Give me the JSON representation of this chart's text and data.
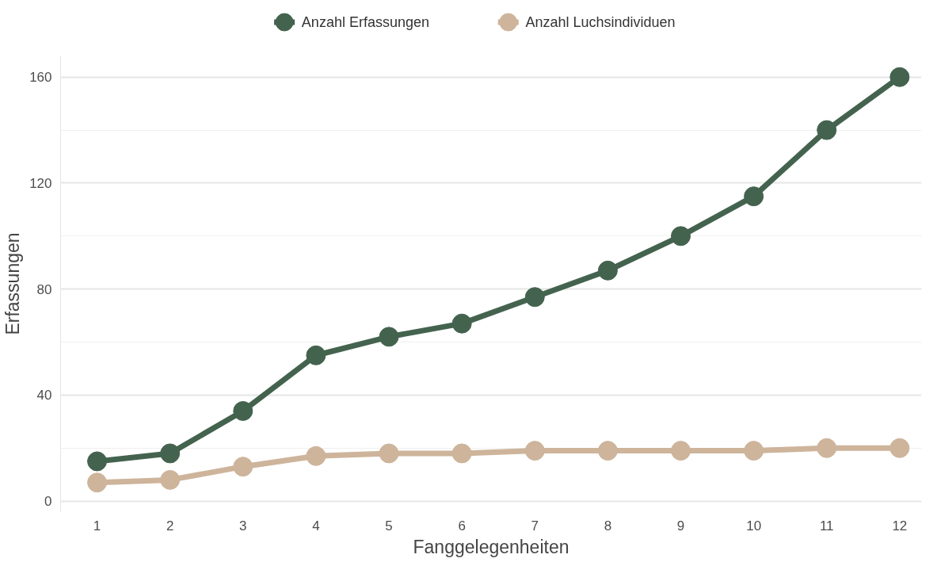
{
  "chart_data": {
    "type": "line",
    "xlabel": "Fanggelegenheiten",
    "ylabel": "Erfassungen",
    "x": [
      1,
      2,
      3,
      4,
      5,
      6,
      7,
      8,
      9,
      10,
      11,
      12
    ],
    "series": [
      {
        "name": "Anzahl Erfassungen",
        "color": "#44634f",
        "values": [
          15,
          18,
          34,
          55,
          62,
          67,
          77,
          87,
          100,
          115,
          140,
          160
        ]
      },
      {
        "name": "Anzahl Luchsindividuen",
        "color": "#cdb49b",
        "values": [
          7,
          8,
          13,
          17,
          18,
          18,
          19,
          19,
          19,
          19,
          20,
          20
        ]
      }
    ],
    "xlim": [
      0.5,
      12.3
    ],
    "xticks": [
      1,
      2,
      3,
      4,
      5,
      6,
      7,
      8,
      9,
      10,
      11,
      12
    ],
    "ylim": [
      -4,
      168
    ],
    "yticks": [
      0,
      40,
      80,
      120,
      160
    ],
    "grid": "y",
    "legend": "top",
    "marker": "circle",
    "line_style": "solid"
  }
}
